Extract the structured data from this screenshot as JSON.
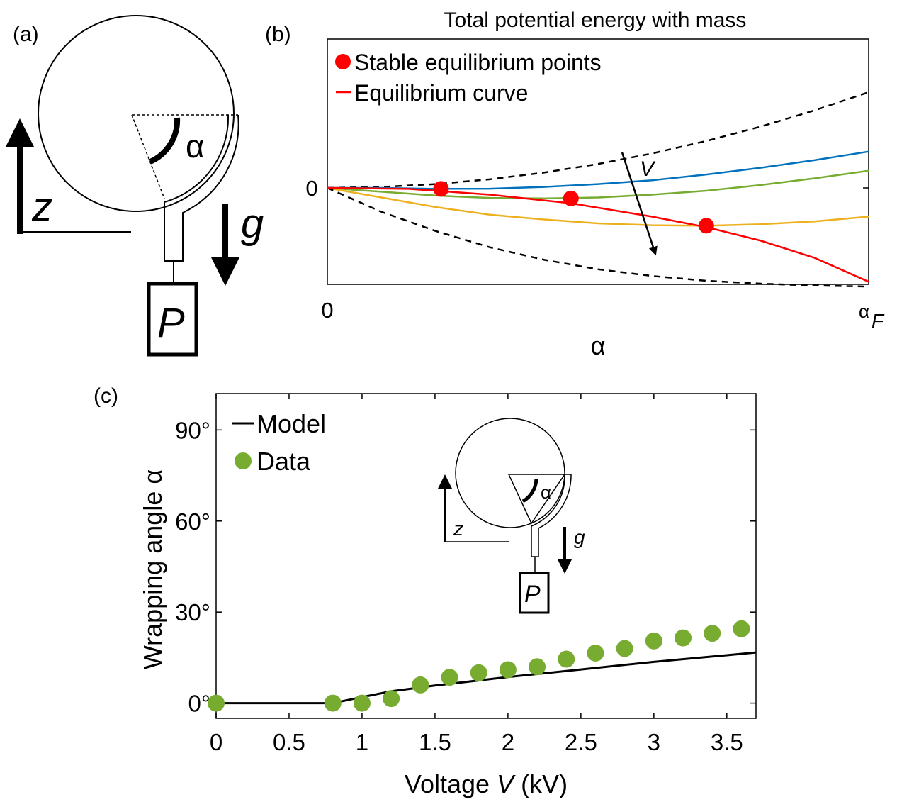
{
  "panel_a": {
    "label": "(a)",
    "symbols": {
      "alpha": "α",
      "z": "z",
      "g": "g",
      "p": "P"
    }
  },
  "panel_b": {
    "label": "(b)",
    "title": "Total potential energy with mass",
    "legend": {
      "stable": "Stable equilibrium points",
      "curve": "Equilibrium curve"
    },
    "y_tick_zero": "0",
    "x_tick_zero": "0",
    "x_tick_end_base": "α",
    "x_tick_end_sub": "F",
    "x_label": "α",
    "arrow_label": "V",
    "colors": {
      "blue": "#0072BD",
      "green": "#77AC30",
      "yellow": "#EDB120",
      "red": "#FF0000",
      "bound": "#000000"
    }
  },
  "panel_c": {
    "label": "(c)",
    "inset_symbols": {
      "alpha": "α",
      "z": "z",
      "g": "g",
      "p": "P"
    },
    "legend": {
      "model": "Model",
      "data": "Data"
    },
    "x_label": {
      "prefix": "Voltage ",
      "var": "V",
      "suffix": " (kV)"
    },
    "y_label": "Wrapping angle α",
    "colors": {
      "data": "#77AC30",
      "model": "#000000"
    }
  },
  "chart_data": [
    {
      "type": "line",
      "title": "Total potential energy with mass",
      "xlabel": "α",
      "ylabel": "",
      "xlim_labels": [
        "0",
        "αF"
      ],
      "x_fraction_of_alphaF": [
        0,
        0.1,
        0.2,
        0.3,
        0.4,
        0.5,
        0.6,
        0.7,
        0.8,
        0.9,
        1.0
      ],
      "series": [
        {
          "values": [
            0,
            0.01,
            0.04,
            0.09,
            0.16,
            0.25,
            0.36,
            0.49,
            0.64,
            0.81,
            1.0
          ]
        },
        {
          "values": [
            0,
            0,
            -0.01,
            -0.008,
            0.01,
            0.04,
            0.08,
            0.14,
            0.21,
            0.29,
            0.38
          ]
        },
        {
          "values": [
            0,
            -0.04,
            -0.08,
            -0.105,
            -0.11,
            -0.1,
            -0.07,
            -0.03,
            0.03,
            0.1,
            0.18
          ]
        },
        {
          "values": [
            0,
            -0.1,
            -0.2,
            -0.28,
            -0.33,
            -0.37,
            -0.39,
            -0.395,
            -0.38,
            -0.35,
            -0.3
          ]
        },
        {
          "values": [
            0,
            -0.25,
            -0.45,
            -0.62,
            -0.75,
            -0.85,
            -0.92,
            -0.97,
            -1.0,
            -1.02,
            -1.03
          ]
        }
      ],
      "equilibrium_curve": {
        "x": [
          0,
          0.15,
          0.3,
          0.45,
          0.6,
          0.7,
          0.8,
          0.9,
          1.0
        ],
        "y": [
          0,
          -0.01,
          -0.07,
          -0.16,
          -0.3,
          -0.41,
          -0.55,
          -0.73,
          -0.98
        ]
      },
      "stable_points": {
        "x": [
          0.21,
          0.45,
          0.7
        ],
        "y": [
          -0.01,
          -0.11,
          -0.395
        ]
      },
      "grid": false,
      "legend": "top-left"
    },
    {
      "type": "scatter",
      "xlabel": "Voltage V (kV)",
      "ylabel": "Wrapping angle α",
      "xlim": [
        0,
        3.7
      ],
      "ylim": [
        -5,
        102
      ],
      "x_ticks": [
        "0",
        "0.5",
        "1",
        "1.5",
        "2",
        "2.5",
        "3",
        "3.5"
      ],
      "y_ticks": [
        "0°",
        "30°",
        "60°",
        "90°"
      ],
      "series": [
        {
          "name": "Model",
          "type": "line",
          "x": [
            0,
            0.8,
            0.95,
            1.2,
            1.5,
            2.0,
            2.5,
            3.0,
            3.5,
            3.7
          ],
          "y": [
            0,
            0,
            1.5,
            3.9,
            5.8,
            8.6,
            11.1,
            13.6,
            15.8,
            16.7
          ]
        },
        {
          "name": "Data",
          "type": "scatter",
          "x": [
            0,
            0.8,
            1.0,
            1.2,
            1.4,
            1.6,
            1.8,
            2.0,
            2.2,
            2.4,
            2.6,
            2.8,
            3.0,
            3.2,
            3.4,
            3.6
          ],
          "y": [
            0,
            0,
            0,
            1.5,
            6,
            8.5,
            10,
            11,
            12,
            14.5,
            16.5,
            18,
            20.5,
            21.5,
            23,
            24.5
          ]
        }
      ],
      "grid": false,
      "legend": "top-left"
    }
  ]
}
